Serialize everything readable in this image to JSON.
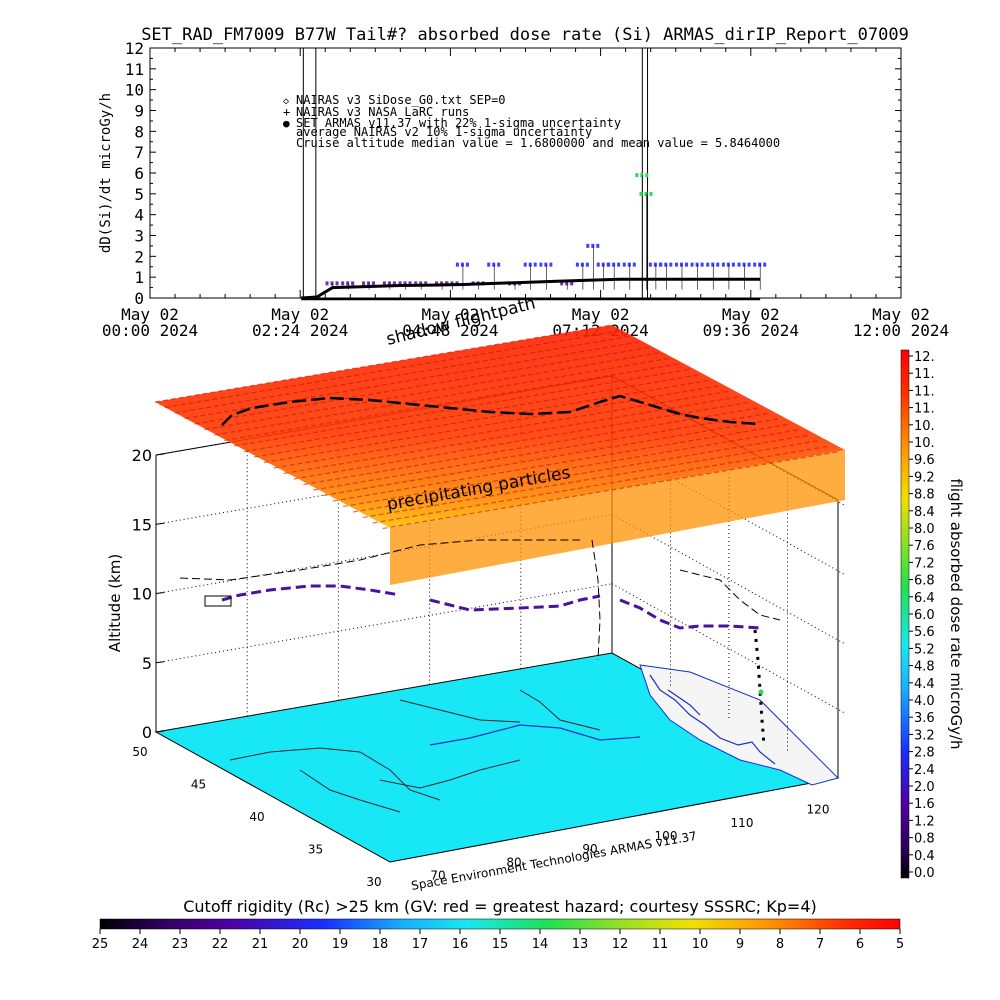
{
  "chart_data": [
    {
      "type": "scatter",
      "title": "SET_RAD_FM7009  B77W Tail#? absorbed dose rate (Si) ARMAS_dirIP_Report_07009",
      "ylabel": "dD(Si)/dt microGy/h",
      "ylim": [
        0,
        12
      ],
      "y_ticks": [
        "0",
        "1",
        "2",
        "3",
        "4",
        "5",
        "6",
        "7",
        "8",
        "9",
        "10",
        "11",
        "12"
      ],
      "x_ticks": [
        {
          "date": "May 02",
          "time": "00:00 2024"
        },
        {
          "date": "May 02",
          "time": "02:24 2024"
        },
        {
          "date": "May 02",
          "time": "04:48 2024"
        },
        {
          "date": "May 02",
          "time": "07:12 2024"
        },
        {
          "date": "May 02",
          "time": "09:36 2024"
        },
        {
          "date": "May 02",
          "time": "12:00 2024"
        }
      ],
      "legend": [
        {
          "symbol": "◇",
          "text": "NAIRAS v3 SiDose_G0.txt SEP=0"
        },
        {
          "symbol": "+",
          "text": "NAIRAS v3 NASA LaRC runs"
        },
        {
          "symbol": "●",
          "text": "SET ARMAS v11.37 with 22% 1-sigma uncertainty",
          "color": "#2030ff"
        },
        {
          "symbol": "",
          "text": "average NAIRAS v2 10% 1-sigma uncertainty"
        },
        {
          "symbol": "",
          "text": "Cruise altitude median value = 1.6800000 and mean value = 5.8464000"
        }
      ],
      "series": [
        {
          "name": "SET ARMAS v11.37 with 22% 1-sigma uncertainty",
          "color": "#4040ff",
          "x": [
            "02:55",
            "03:10",
            "03:30",
            "03:50",
            "04:05",
            "04:20",
            "04:40",
            "04:50",
            "05:00",
            "05:15",
            "05:30",
            "05:50",
            "06:05",
            "06:20",
            "06:40",
            "06:55",
            "07:05",
            "07:15",
            "07:25",
            "07:40",
            "07:52",
            "07:56",
            "08:05",
            "08:15",
            "08:30",
            "08:45",
            "09:00",
            "09:15",
            "09:30",
            "09:45"
          ],
          "y": [
            0.7,
            0.7,
            0.7,
            0.7,
            0.7,
            0.7,
            0.7,
            0.7,
            1.6,
            0.7,
            1.6,
            0.7,
            1.6,
            1.6,
            0.7,
            1.6,
            2.5,
            1.6,
            1.6,
            1.6,
            5.9,
            5.0,
            1.6,
            1.6,
            1.6,
            1.6,
            1.6,
            1.6,
            1.6,
            1.6
          ]
        },
        {
          "name": "NAIRAS v3 NASA LaRC runs",
          "x": [
            "02:25",
            "02:40",
            "02:55",
            "03:30",
            "04:00",
            "04:30",
            "05:00",
            "05:30",
            "06:00",
            "06:30",
            "07:00",
            "07:30",
            "08:00",
            "08:30",
            "09:00",
            "09:30",
            "09:45"
          ],
          "y": [
            0.0,
            0.05,
            0.5,
            0.55,
            0.6,
            0.62,
            0.65,
            0.7,
            0.75,
            0.8,
            0.85,
            0.9,
            0.9,
            0.9,
            0.9,
            0.9,
            0.9
          ]
        },
        {
          "name": "NAIRAS v3 SiDose_G0.txt SEP=0",
          "x": [
            "02:25",
            "04:00",
            "06:00",
            "08:00",
            "09:45"
          ],
          "y": [
            0.0,
            0.0,
            0.0,
            0.0,
            0.0
          ]
        }
      ],
      "vertical_markers": [
        "02:27",
        "02:39",
        "07:52",
        "07:57"
      ]
    },
    {
      "type": "heatmap",
      "zlabel": "Altitude (km)",
      "z_ticks": [
        "0",
        "5",
        "10",
        "15",
        "20"
      ],
      "lat_ticks": [
        "50",
        "45",
        "40",
        "35",
        "30"
      ],
      "lon_ticks": [
        "70",
        "80",
        "90",
        "100",
        "110",
        "120"
      ],
      "annotations": [
        "shadow flightpath",
        "precipitating particles",
        "Space Environment Technologies ARMAS v11.37"
      ],
      "colorbar": {
        "label": "flight absorbed dose rate microGy/h",
        "ticks": [
          "12.",
          "11.",
          "11.",
          "11.",
          "10.",
          "10.",
          "9.6",
          "9.2",
          "8.8",
          "8.4",
          "8.0",
          "7.6",
          "7.2",
          "6.8",
          "6.4",
          "6.0",
          "5.6",
          "5.2",
          "4.8",
          "4.4",
          "4.0",
          "3.6",
          "3.2",
          "2.8",
          "2.4",
          "2.0",
          "1.6",
          "1.2",
          "0.8",
          "0.4",
          "0.0"
        ]
      },
      "rigidity_bar": {
        "label": "Cutoff rigidity (Rc) >25 km (GV: red = greatest hazard; courtesy SSSRC; Kp=4)",
        "ticks": [
          "25",
          "24",
          "23",
          "22",
          "21",
          "20",
          "19",
          "18",
          "17",
          "16",
          "15",
          "14",
          "13",
          "12",
          "11",
          "10",
          "9",
          "8",
          "7",
          "6",
          "5"
        ]
      }
    }
  ]
}
